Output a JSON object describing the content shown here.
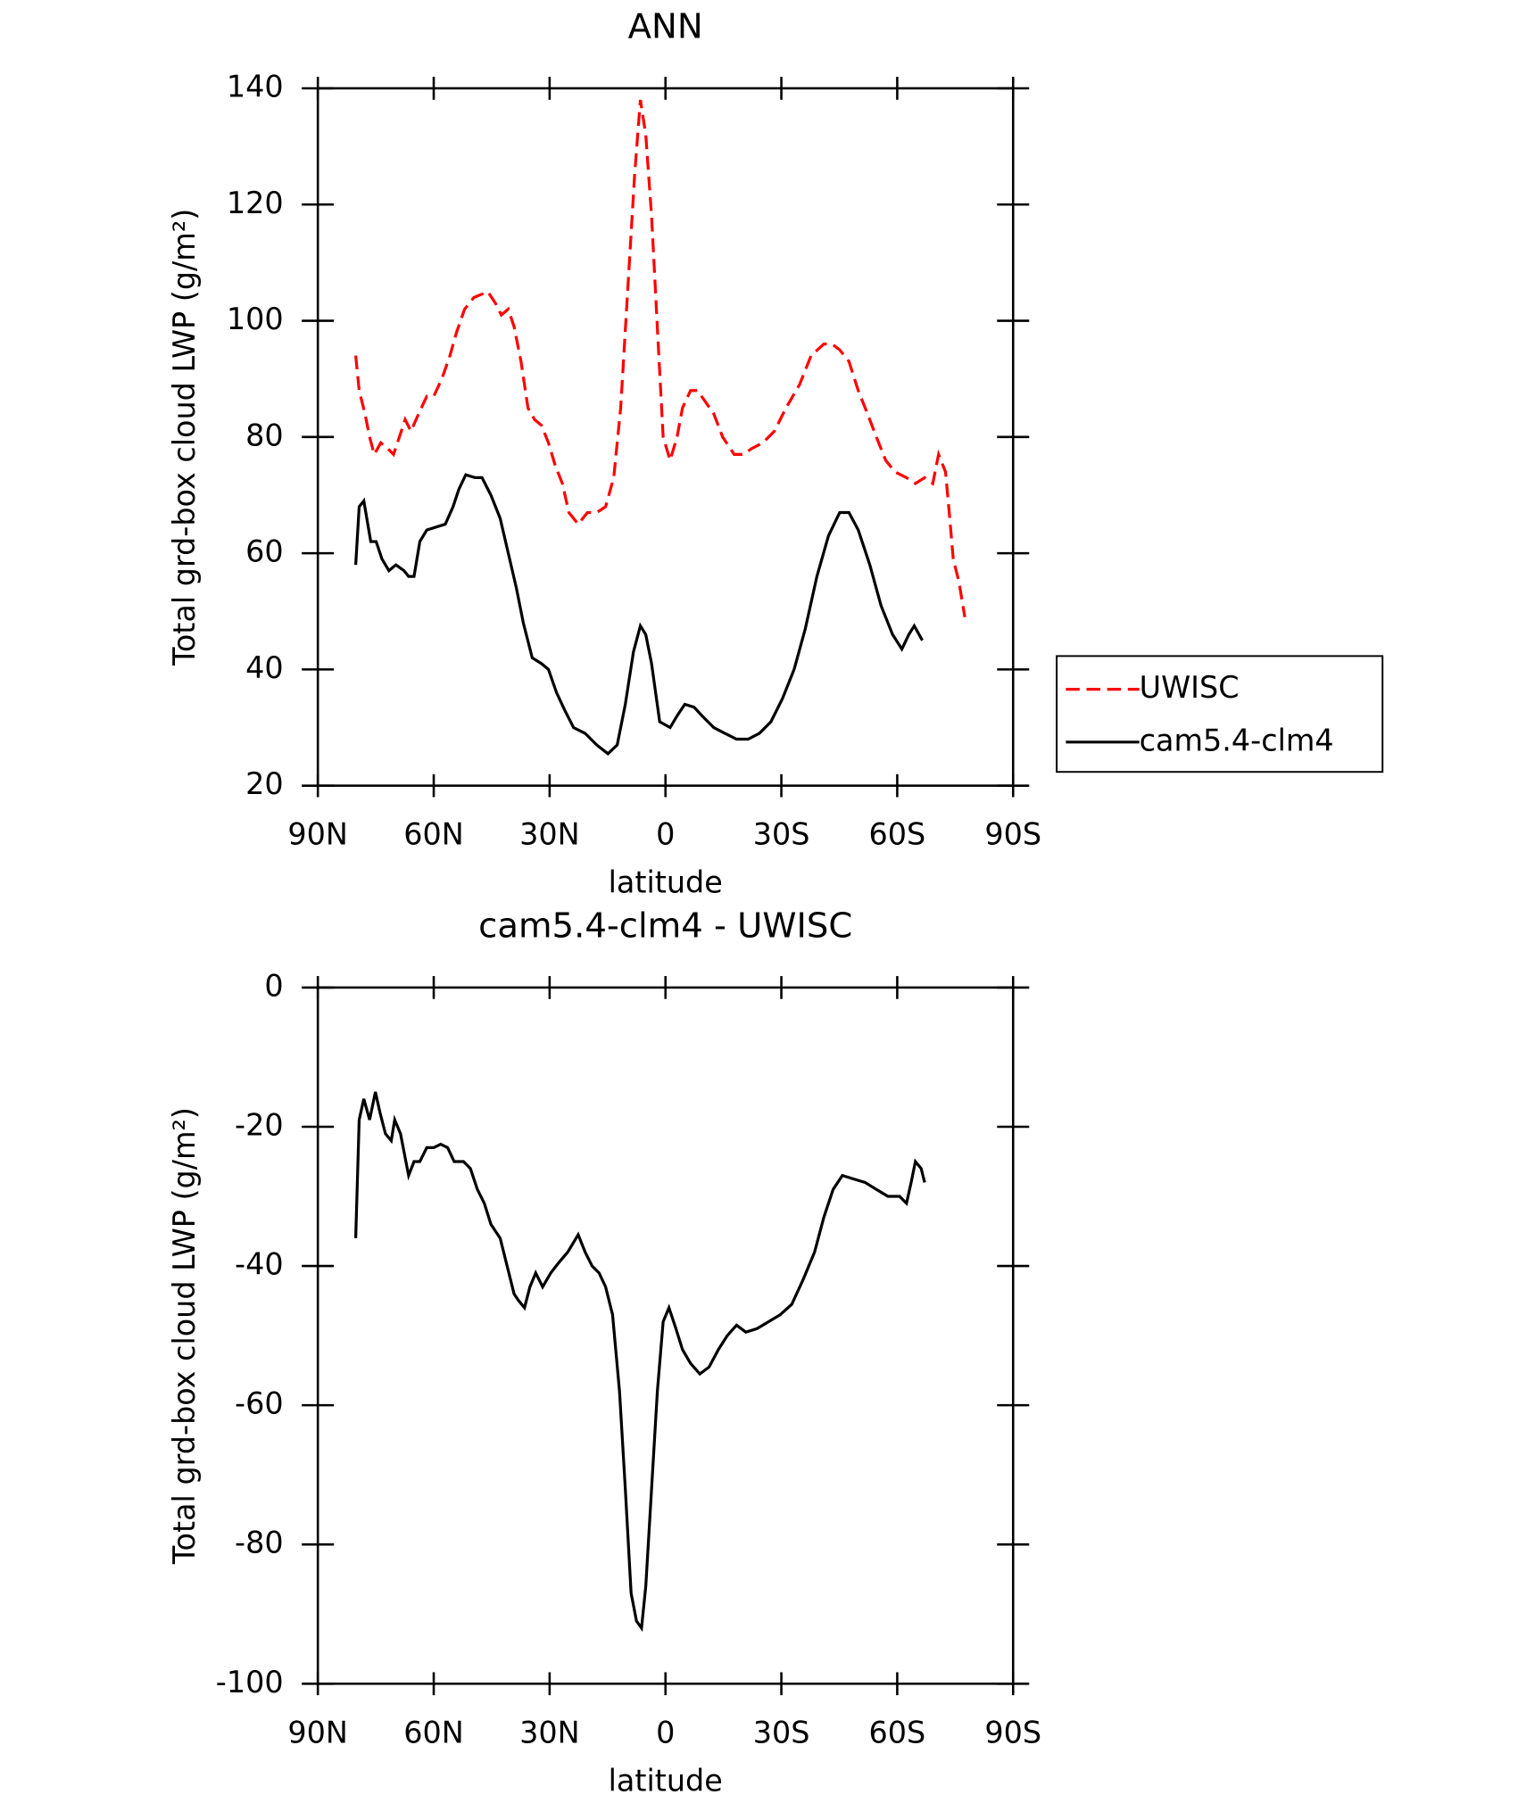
{
  "chart_data": [
    {
      "type": "line",
      "title": "ANN",
      "xlabel": "latitude",
      "ylabel": "Total grd-box cloud LWP (g/m²)",
      "xlim": [
        90,
        -90
      ],
      "xticks": [
        {
          "value": 90,
          "label": "90N"
        },
        {
          "value": 60,
          "label": "60N"
        },
        {
          "value": 30,
          "label": "30N"
        },
        0,
        {
          "value": -30,
          "label": "30S"
        },
        {
          "value": -60,
          "label": "60S"
        },
        {
          "value": -90,
          "label": "90S"
        }
      ],
      "ylim": [
        20,
        140
      ],
      "yticks": [
        20,
        40,
        60,
        80,
        100,
        120,
        140
      ],
      "legend": "right",
      "series": [
        {
          "name": "UWISC",
          "color": "#ff0000",
          "dash": true,
          "x": [
            80.2,
            79.3,
            77.8,
            76.6,
            75.4,
            73.7,
            71.9,
            70.4,
            68.9,
            67.4,
            65.9,
            63.9,
            61.8,
            60,
            57.9,
            55.8,
            54.1,
            52,
            49.6,
            46,
            44,
            42.5,
            40.7,
            39.2,
            37.4,
            35.6,
            33.9,
            32.1,
            30.3,
            28.5,
            26.7,
            25,
            22.6,
            20.2,
            17.8,
            15.5,
            13.4,
            11.6,
            9.8,
            8,
            6.5,
            5.1,
            3.6,
            1.8,
            0.6,
            -1.2,
            -3,
            -4.4,
            -6.5,
            -8.3,
            -10.4,
            -12.5,
            -14.8,
            -17.8,
            -20.2,
            -22.3,
            -25.2,
            -28.2,
            -31.2,
            -34.7,
            -37.7,
            -41,
            -43.1,
            -45.1,
            -47.5,
            -49.9,
            -52.3,
            -54.6,
            -57,
            -59.4,
            -62.4,
            -64.7,
            -67.1,
            -69.2,
            -70.7,
            -72.5,
            -73.6,
            -74.5,
            -76,
            -77.5
          ],
          "values": [
            94,
            88,
            84,
            80,
            77,
            79,
            78,
            77,
            80,
            83,
            81,
            84,
            87,
            87,
            90,
            94,
            98,
            102,
            104,
            105,
            103,
            101,
            102,
            99,
            93,
            85,
            83,
            82,
            79,
            75,
            72,
            67,
            65,
            67,
            67,
            68,
            73,
            85,
            105,
            125,
            138,
            132,
            118,
            95,
            80,
            76,
            80,
            85,
            88,
            88,
            86,
            84,
            80,
            77,
            77,
            78,
            79,
            81,
            85,
            89,
            94,
            96,
            96,
            95,
            93,
            88,
            84,
            80,
            76,
            74,
            73,
            72,
            73,
            72,
            77,
            74,
            66,
            59,
            55,
            49
          ]
        },
        {
          "name": "cam5.4-clm4",
          "color": "#000000",
          "dash": false,
          "x": [
            80.2,
            79.3,
            78.1,
            76.3,
            74.9,
            73.4,
            71.6,
            69.8,
            67.7,
            66.5,
            65.1,
            63.6,
            61.8,
            59.4,
            57,
            55,
            53.5,
            51.7,
            49.3,
            47.5,
            45.2,
            42.8,
            40.7,
            38.6,
            36.8,
            34.5,
            32.1,
            30.3,
            28.2,
            26.1,
            23.8,
            20.8,
            17.8,
            14.9,
            12.5,
            10.4,
            8.3,
            6.5,
            5.1,
            3.6,
            1.5,
            -1.2,
            -3,
            -5,
            -7.4,
            -9.5,
            -12.5,
            -15.4,
            -18.4,
            -21.4,
            -24.3,
            -27.3,
            -30.3,
            -33.3,
            -36.2,
            -39.2,
            -42.2,
            -45.1,
            -47.5,
            -49.9,
            -52.9,
            -55.8,
            -58.8,
            -61.2,
            -63,
            -64.4,
            -66.5
          ],
          "values": [
            58,
            68,
            69,
            62,
            62,
            59,
            57,
            58,
            57,
            56,
            56,
            62,
            64,
            64.5,
            65,
            68,
            71,
            73.5,
            73,
            73,
            70,
            66,
            60,
            54,
            48,
            42,
            41,
            40,
            36,
            33,
            30,
            29,
            27,
            25.5,
            27,
            34,
            43,
            47.5,
            46,
            41,
            31,
            30,
            32,
            34,
            33.5,
            32,
            30,
            29,
            28,
            28,
            29,
            31,
            35,
            40,
            47,
            56,
            63,
            67,
            67,
            64,
            58,
            51,
            46,
            43.5,
            46,
            47.5,
            45
          ]
        }
      ]
    },
    {
      "type": "line",
      "title": "cam5.4-clm4 - UWISC",
      "xlabel": "latitude",
      "ylabel": "Total grd-box cloud LWP (g/m²)",
      "xlim": [
        90,
        -90
      ],
      "xticks": [
        {
          "value": 90,
          "label": "90N"
        },
        {
          "value": 60,
          "label": "60N"
        },
        {
          "value": 30,
          "label": "30N"
        },
        0,
        {
          "value": -30,
          "label": "30S"
        },
        {
          "value": -60,
          "label": "60S"
        },
        {
          "value": -90,
          "label": "90S"
        }
      ],
      "ylim": [
        -100,
        0
      ],
      "yticks": [
        -100,
        -80,
        -60,
        -40,
        -20,
        0
      ],
      "series": [
        {
          "color": "#000000",
          "dash": false,
          "x": [
            80.2,
            79.3,
            78.1,
            76.6,
            75.1,
            73.9,
            72.5,
            71,
            70.1,
            68.6,
            66.5,
            65.1,
            63.6,
            61.8,
            60,
            58.2,
            56.4,
            54.7,
            52.3,
            50.5,
            48.7,
            46.9,
            45.2,
            42.8,
            41,
            39.2,
            38,
            36.5,
            35.1,
            33.6,
            31.8,
            29.7,
            27.6,
            25.3,
            22.6,
            20.8,
            19,
            17.2,
            15.5,
            13.7,
            11.9,
            10.4,
            8.9,
            7.5,
            6.2,
            5.1,
            3.6,
            2.1,
            0.6,
            -0.9,
            -2.7,
            -4.4,
            -6.5,
            -8.9,
            -11.3,
            -13.7,
            -16,
            -18.4,
            -20.8,
            -23.7,
            -26.7,
            -29.7,
            -32.7,
            -35.6,
            -38.6,
            -41,
            -43.4,
            -45.8,
            -48.7,
            -51.7,
            -54.6,
            -57.6,
            -60.6,
            -62.4,
            -63.6,
            -64.7,
            -66.2,
            -67.1
          ],
          "values": [
            -36,
            -19,
            -16,
            -19,
            -15,
            -18,
            -21,
            -22,
            -19,
            -21,
            -27,
            -25,
            -25,
            -23,
            -23,
            -22.5,
            -23,
            -25,
            -25,
            -26,
            -29,
            -31,
            -34,
            -36,
            -40,
            -44,
            -45,
            -46,
            -43,
            -41,
            -43,
            -41,
            -39.5,
            -38,
            -35.5,
            -38,
            -40,
            -41,
            -43,
            -47,
            -58,
            -72,
            -87,
            -91,
            -92,
            -86,
            -72,
            -58,
            -48,
            -46,
            -49,
            -52,
            -54,
            -55.5,
            -54.5,
            -52,
            -50,
            -48.5,
            -49.5,
            -49,
            -48,
            -47,
            -45.5,
            -42,
            -38,
            -33,
            -29,
            -27,
            -27.5,
            -28,
            -29,
            -30,
            -30,
            -31,
            -28,
            -25,
            -26,
            -28
          ]
        }
      ]
    }
  ]
}
